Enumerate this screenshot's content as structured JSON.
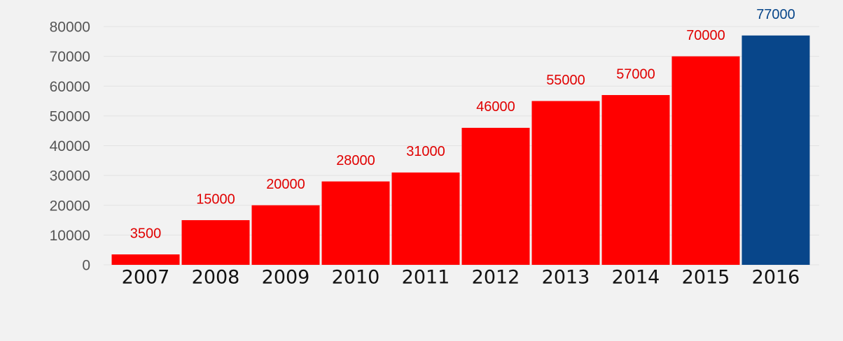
{
  "chart_data": {
    "type": "bar",
    "categories": [
      "2007",
      "2008",
      "2009",
      "2010",
      "2011",
      "2012",
      "2013",
      "2014",
      "2015",
      "2016"
    ],
    "values": [
      3500,
      15000,
      20000,
      28000,
      31000,
      46000,
      55000,
      57000,
      70000,
      77000
    ],
    "colors": [
      "#ff0000",
      "#ff0000",
      "#ff0000",
      "#ff0000",
      "#ff0000",
      "#ff0000",
      "#ff0000",
      "#ff0000",
      "#ff0000",
      "#08468a"
    ],
    "label_colors": [
      "#e00000",
      "#e00000",
      "#e00000",
      "#e00000",
      "#e00000",
      "#e00000",
      "#e00000",
      "#e00000",
      "#e00000",
      "#08468a"
    ],
    "ylim": [
      0,
      80000
    ],
    "yticks": [
      0,
      10000,
      20000,
      30000,
      40000,
      50000,
      60000,
      70000,
      80000
    ],
    "grid": true
  }
}
